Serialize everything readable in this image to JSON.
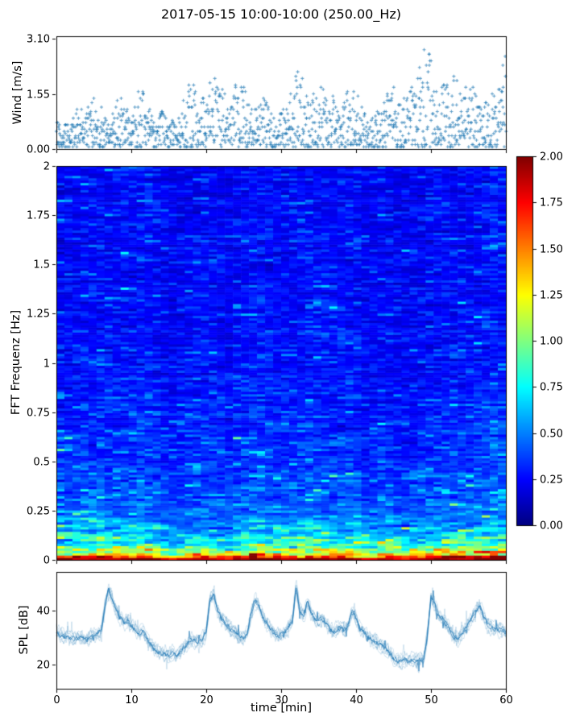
{
  "title": "2017-05-15 10:00-10:00 (250.00_Hz)",
  "colors": {
    "series_blue": "#1f77b4",
    "axis": "#000000",
    "background": "#ffffff"
  },
  "xlabel": "time [min]",
  "xlim": [
    0,
    60
  ],
  "xticks": {
    "values": [
      0,
      10,
      20,
      30,
      40,
      50,
      60
    ],
    "labels": [
      "0",
      "10",
      "20",
      "30",
      "40",
      "50",
      "60"
    ]
  },
  "chart_data": [
    {
      "type": "scatter",
      "name": "wind-speed",
      "ylabel": "Wind [m/s]",
      "ylim": [
        0,
        3.17
      ],
      "yticks": {
        "values": [
          0.0,
          1.55,
          3.1
        ],
        "labels": [
          "0.00",
          "1.55",
          "3.10"
        ]
      },
      "marker": "plus",
      "color": "#1f77b4",
      "sample_step_min": 0.045,
      "value_floor": 0.05,
      "value_quantize": 0.062,
      "envelope_start_minute": 0,
      "envelope_step_min": 1,
      "envelope_max": [
        0.9,
        0.75,
        0.7,
        1.45,
        1.1,
        1.5,
        1.25,
        0.6,
        1.6,
        1.35,
        0.9,
        1.9,
        1.4,
        0.8,
        1.05,
        1.0,
        0.7,
        1.75,
        1.95,
        1.5,
        1.6,
        2.15,
        1.8,
        1.3,
        1.9,
        1.85,
        1.1,
        1.6,
        1.5,
        0.9,
        1.1,
        1.2,
        2.3,
        1.9,
        1.3,
        2.1,
        1.6,
        1.5,
        0.9,
        1.85,
        1.7,
        1.05,
        0.85,
        1.15,
        1.5,
        1.8,
        1.4,
        1.7,
        2.0,
        2.9,
        2.6,
        1.7,
        2.3,
        2.2,
        1.5,
        1.85,
        1.75,
        1.2,
        1.55,
        1.7,
        3.1
      ],
      "seed": 42
    },
    {
      "type": "heatmap",
      "name": "fft-spectrogram",
      "ylabel": "FFT Frequenz [Hz]",
      "ylim": [
        0,
        2
      ],
      "yticks": {
        "values": [
          0,
          0.25,
          0.5,
          0.75,
          1,
          1.25,
          1.5,
          1.75,
          2
        ],
        "labels": [
          "0",
          "0.25",
          "0.5",
          "0.75",
          "1",
          "1.25",
          "1.5",
          "1.75",
          "2"
        ]
      },
      "colormap": "jet",
      "clim": [
        0,
        2
      ],
      "colorbar_ticks": {
        "values": [
          0,
          0.25,
          0.5,
          0.75,
          1,
          1.25,
          1.5,
          1.75,
          2
        ],
        "labels": [
          "0.00",
          "0.25",
          "0.50",
          "0.75",
          "1.00",
          "1.25",
          "1.50",
          "1.75",
          "2.00"
        ]
      },
      "time_bins": 56,
      "freq_bins": 166,
      "freq_profile": {
        "f": [
          0.0,
          0.01,
          0.018,
          0.028,
          0.045,
          0.065,
          0.095,
          0.13,
          0.18,
          0.25,
          0.35,
          0.5,
          0.7,
          1.0,
          1.4,
          1.7,
          2.0
        ],
        "mean": [
          1.97,
          1.93,
          1.7,
          1.4,
          1.12,
          0.95,
          0.8,
          0.66,
          0.56,
          0.48,
          0.42,
          0.38,
          0.33,
          0.29,
          0.27,
          0.27,
          0.26
        ],
        "sigma": [
          0.03,
          0.06,
          0.22,
          0.3,
          0.33,
          0.35,
          0.36,
          0.36,
          0.35,
          0.34,
          0.33,
          0.33,
          0.34,
          0.36,
          0.38,
          0.38,
          0.38
        ]
      },
      "time_modulation": [
        1.0,
        1.0,
        0.96,
        1.04,
        1.0,
        1.0,
        0.98,
        1.0,
        1.04,
        1.0,
        1.15,
        1.05,
        0.95,
        0.82,
        0.82,
        0.95,
        1.0,
        1.02,
        1.0,
        0.95,
        0.86,
        0.9,
        1.0,
        1.02,
        1.1,
        1.07,
        1.0,
        1.0,
        0.98,
        1.0,
        1.04,
        1.12,
        1.05,
        1.0,
        0.98,
        1.0,
        1.0,
        0.96,
        0.84,
        0.95,
        1.0,
        0.96,
        0.86,
        0.86,
        0.96,
        1.0,
        1.04,
        1.0,
        1.0,
        1.0,
        1.02,
        1.0,
        1.05,
        1.1,
        1.1,
        1.08
      ],
      "persistence_low_freq": 0.45,
      "persistence_high_freq": 0.3,
      "seed": 7
    },
    {
      "type": "line",
      "name": "spl",
      "ylabel": "SPL [dB]",
      "ylim": [
        11,
        54.3
      ],
      "yticks": {
        "values": [
          20,
          40
        ],
        "labels": [
          "20",
          "40"
        ]
      },
      "color": "#1f77b4",
      "x_start_minute": 0,
      "x_step_min": 0.5,
      "values": [
        32,
        31,
        30,
        30.5,
        30,
        29.5,
        30.5,
        29.5,
        29,
        30,
        30.5,
        31,
        33,
        42,
        48,
        44,
        40,
        37.5,
        35.5,
        36.5,
        34.5,
        33,
        31.5,
        32.5,
        30,
        28,
        26,
        25,
        24.5,
        23.5,
        23,
        24,
        23,
        24.5,
        26,
        27.5,
        29.5,
        29,
        28.5,
        29.5,
        32,
        44,
        46,
        40,
        37,
        35.5,
        34,
        32.5,
        31.5,
        30.5,
        30,
        31.5,
        39,
        44,
        42,
        38,
        35.5,
        33.5,
        32,
        30.5,
        31,
        32,
        34,
        36,
        49,
        40,
        38,
        43,
        39,
        37,
        36,
        37,
        35,
        33.5,
        32,
        33,
        34,
        33,
        35,
        40,
        37,
        34,
        32,
        30.5,
        29.5,
        28.5,
        28,
        27,
        26,
        24.5,
        22.5,
        21.5,
        21,
        22,
        21,
        21.5,
        21,
        21.5,
        22,
        30,
        45,
        42,
        38.5,
        37,
        35,
        33,
        30.5,
        29.5,
        31,
        33,
        35,
        37.5,
        40,
        42,
        38,
        35,
        34,
        33,
        32.5,
        33.5,
        31
      ],
      "noise_band_db": 1.5,
      "seed": 3
    }
  ]
}
